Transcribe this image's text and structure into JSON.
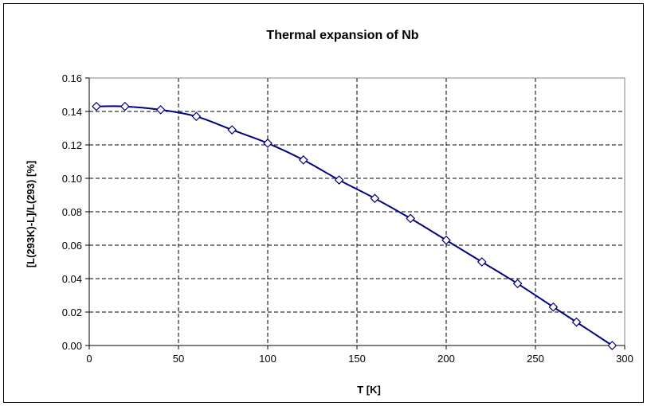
{
  "chart_data": {
    "type": "line",
    "title": "Thermal expansion of Nb",
    "xlabel": "T [K]",
    "ylabel": "[L(293K)-L]/L(293) [%]",
    "xlim": [
      0,
      300
    ],
    "ylim": [
      0,
      0.16
    ],
    "x_ticks": [
      "0",
      "50",
      "100",
      "150",
      "200",
      "250",
      "300"
    ],
    "y_ticks": [
      "0.00",
      "0.02",
      "0.04",
      "0.06",
      "0.08",
      "0.10",
      "0.12",
      "0.14",
      "0.16"
    ],
    "grid": true,
    "grid_style": "dashed",
    "marker": "diamond",
    "series": [
      {
        "color": "#000080",
        "x": [
          4,
          20,
          40,
          60,
          80,
          100,
          120,
          140,
          160,
          180,
          200,
          220,
          240,
          260,
          273,
          293
        ],
        "y": [
          0.143,
          0.143,
          0.141,
          0.137,
          0.129,
          0.121,
          0.111,
          0.099,
          0.088,
          0.076,
          0.063,
          0.05,
          0.037,
          0.023,
          0.014,
          0.0
        ]
      }
    ]
  }
}
